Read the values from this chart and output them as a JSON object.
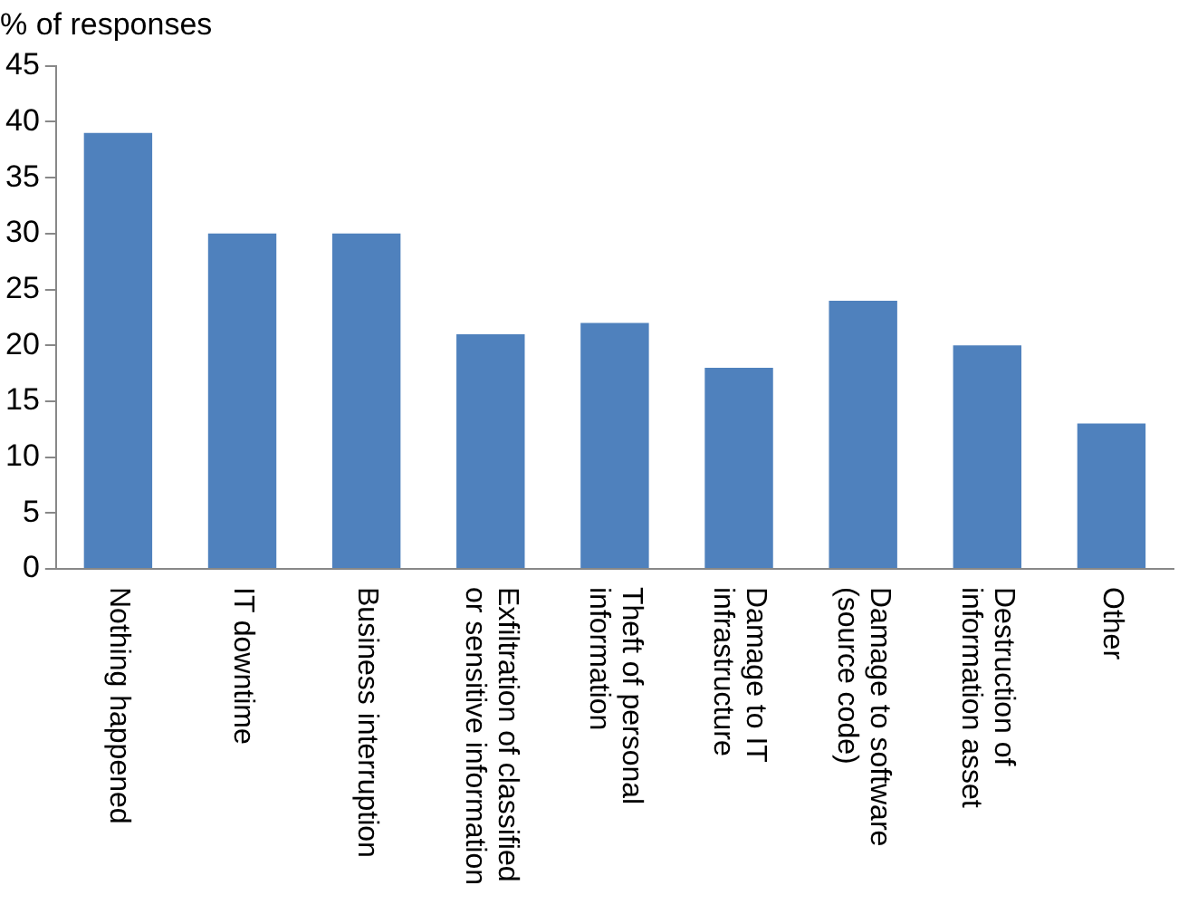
{
  "chart_data": {
    "type": "bar",
    "ylabel": "% of responses",
    "categories": [
      "Nothing happened",
      "IT downtime",
      "Business interruption",
      "Exfiltration of classified\nor sensitive information",
      "Theft of personal\ninformation",
      "Damage to IT\ninfrastructure",
      "Damage to software\n(source code)",
      "Destruction of\ninformation asset",
      "Other"
    ],
    "values": [
      39,
      30,
      30,
      21,
      22,
      18,
      24,
      20,
      13
    ],
    "color": "#4f81bd",
    "ylim": [
      0,
      45
    ],
    "yticks": [
      0,
      5,
      10,
      15,
      20,
      25,
      30,
      35,
      40,
      45
    ],
    "grid": false,
    "legend": false
  }
}
